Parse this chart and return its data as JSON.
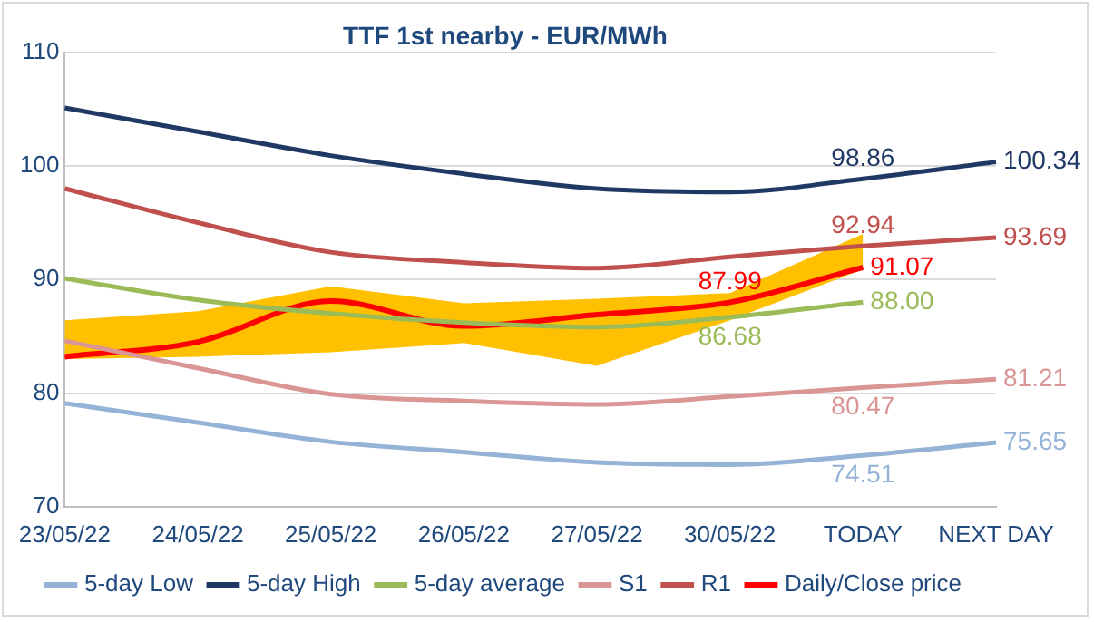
{
  "chart_data": {
    "type": "line",
    "title": "TTF 1st nearby - EUR/MWh",
    "categories": [
      "23/05/22",
      "24/05/22",
      "25/05/22",
      "26/05/22",
      "27/05/22",
      "30/05/22",
      "TODAY",
      "NEXT DAY"
    ],
    "ylim": [
      70,
      110
    ],
    "yticks": [
      70,
      80,
      90,
      100,
      110
    ],
    "grid": "y",
    "legend": "bottom",
    "marker": "none",
    "line_style": "solid",
    "series": [
      {
        "name": "5-day Low",
        "color": "#95b3d7",
        "values": [
          79.1,
          77.4,
          75.7,
          74.8,
          73.9,
          73.7,
          74.51,
          75.65
        ],
        "value_labels": [
          null,
          null,
          null,
          null,
          null,
          null,
          "74.51",
          "75.65"
        ]
      },
      {
        "name": "5-day High",
        "color": "#1f3864",
        "values": [
          105.1,
          103.0,
          100.9,
          99.3,
          98.0,
          97.7,
          98.86,
          100.34
        ],
        "value_labels": [
          null,
          null,
          null,
          null,
          null,
          null,
          "98.86",
          "100.34"
        ]
      },
      {
        "name": "5-day average",
        "color": "#9bbb59",
        "values": [
          90.1,
          88.2,
          87.0,
          86.2,
          85.8,
          86.68,
          88.0,
          null
        ],
        "value_labels": [
          null,
          null,
          null,
          null,
          null,
          "86.68",
          "88.00",
          null
        ]
      },
      {
        "name": "S1",
        "color": "#da9694",
        "values": [
          84.6,
          82.2,
          79.9,
          79.3,
          79.0,
          79.7,
          80.47,
          81.21
        ],
        "value_labels": [
          null,
          null,
          null,
          null,
          null,
          null,
          "80.47",
          "81.21"
        ]
      },
      {
        "name": "R1",
        "color": "#c0504d",
        "values": [
          98.0,
          95.0,
          92.4,
          91.5,
          91.0,
          92.0,
          92.94,
          93.69
        ],
        "value_labels": [
          null,
          null,
          null,
          null,
          null,
          null,
          "92.94",
          "93.69"
        ]
      },
      {
        "name": "Daily/Close price",
        "color": "#ff0000",
        "values": [
          83.2,
          84.5,
          88.1,
          85.9,
          86.9,
          87.99,
          91.07,
          null
        ],
        "value_labels": [
          null,
          null,
          null,
          null,
          null,
          "87.99",
          "91.07",
          null
        ],
        "lower": [
          83.0,
          83.2,
          83.6,
          84.4,
          82.4,
          86.4,
          90.9,
          null
        ],
        "upper": [
          86.4,
          87.2,
          89.4,
          87.9,
          88.3,
          88.8,
          94.0,
          null
        ]
      }
    ]
  }
}
